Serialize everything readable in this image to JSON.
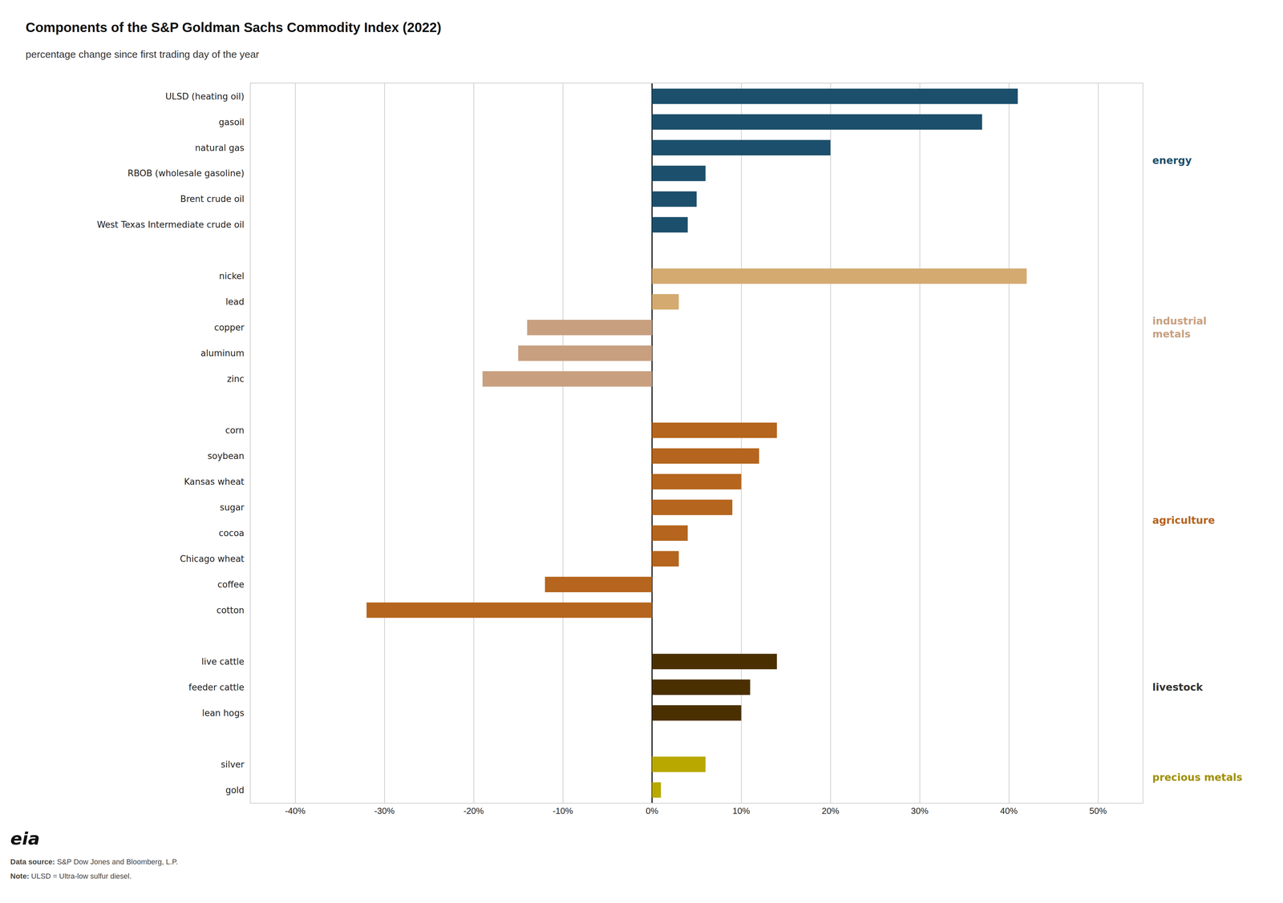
{
  "chart_data": {
    "type": "bar",
    "orientation": "horizontal",
    "title": "Components of the S&P Goldman Sachs Commodity Index (2022)",
    "subtitle": "percentage change since first trading day of the year",
    "categories": [
      "ULSD (heating oil)",
      "gasoil",
      "natural gas",
      "RBOB (wholesale gasoline)",
      "Brent crude oil",
      "West Texas Intermediate crude oil",
      null,
      "nickel",
      "lead",
      "copper",
      "aluminum",
      "zinc",
      null,
      "corn",
      "soybean",
      "Kansas wheat",
      "sugar",
      "cocoa",
      "Chicago wheat",
      "coffee",
      "cotton",
      null,
      "live cattle",
      "feeder cattle",
      "lean hogs",
      null,
      "silver",
      "gold"
    ],
    "values": [
      41,
      37,
      20,
      6,
      5,
      4,
      null,
      42,
      3,
      -14,
      -15,
      -19,
      null,
      14,
      12,
      10,
      9,
      4,
      3,
      -12,
      -32,
      null,
      14,
      11,
      10,
      null,
      6,
      1
    ],
    "colors": [
      "#1b4f6b",
      "#1b4f6b",
      "#1b4f6b",
      "#1b4f6b",
      "#1b4f6b",
      "#1b4f6b",
      null,
      "#d4aa70",
      "#d4aa70",
      "#c8a080",
      "#c8a080",
      "#c8a080",
      null,
      "#b5651d",
      "#b5651d",
      "#b5651d",
      "#b5651d",
      "#b5651d",
      "#b5651d",
      "#b5651d",
      "#b5651d",
      null,
      "#4a3000",
      "#4a3000",
      "#4a3000",
      null,
      "#b8a800",
      "#b8a800"
    ],
    "annotations": [
      {
        "text": "energy",
        "color": "#1b4f6b"
      },
      {
        "text": "industrial\nmetals",
        "color": "#c8a080"
      },
      {
        "text": "agriculture",
        "color": "#b5651d"
      },
      {
        "text": "livestock",
        "color": "#333333"
      },
      {
        "text": "precious metals",
        "color": "#a09000"
      }
    ],
    "source": "Data source: S&P Dow Jones and Bloomberg, L.P.",
    "note": "Note: ULSD = Ultra-low sulfur diesel.",
    "logo": "eia",
    "xlim": [
      -45,
      55
    ],
    "xticks": [
      {
        "value": -40,
        "label": "-40%"
      },
      {
        "value": -30,
        "label": "-30%"
      },
      {
        "value": -20,
        "label": "-20%"
      },
      {
        "value": -10,
        "label": "-10%"
      },
      {
        "value": 0,
        "label": "0%"
      },
      {
        "value": 10,
        "label": "10%"
      },
      {
        "value": 20,
        "label": "20%"
      },
      {
        "value": 30,
        "label": "30%"
      },
      {
        "value": 40,
        "label": "40%"
      },
      {
        "value": 50,
        "label": "50%"
      }
    ],
    "grid": true
  }
}
